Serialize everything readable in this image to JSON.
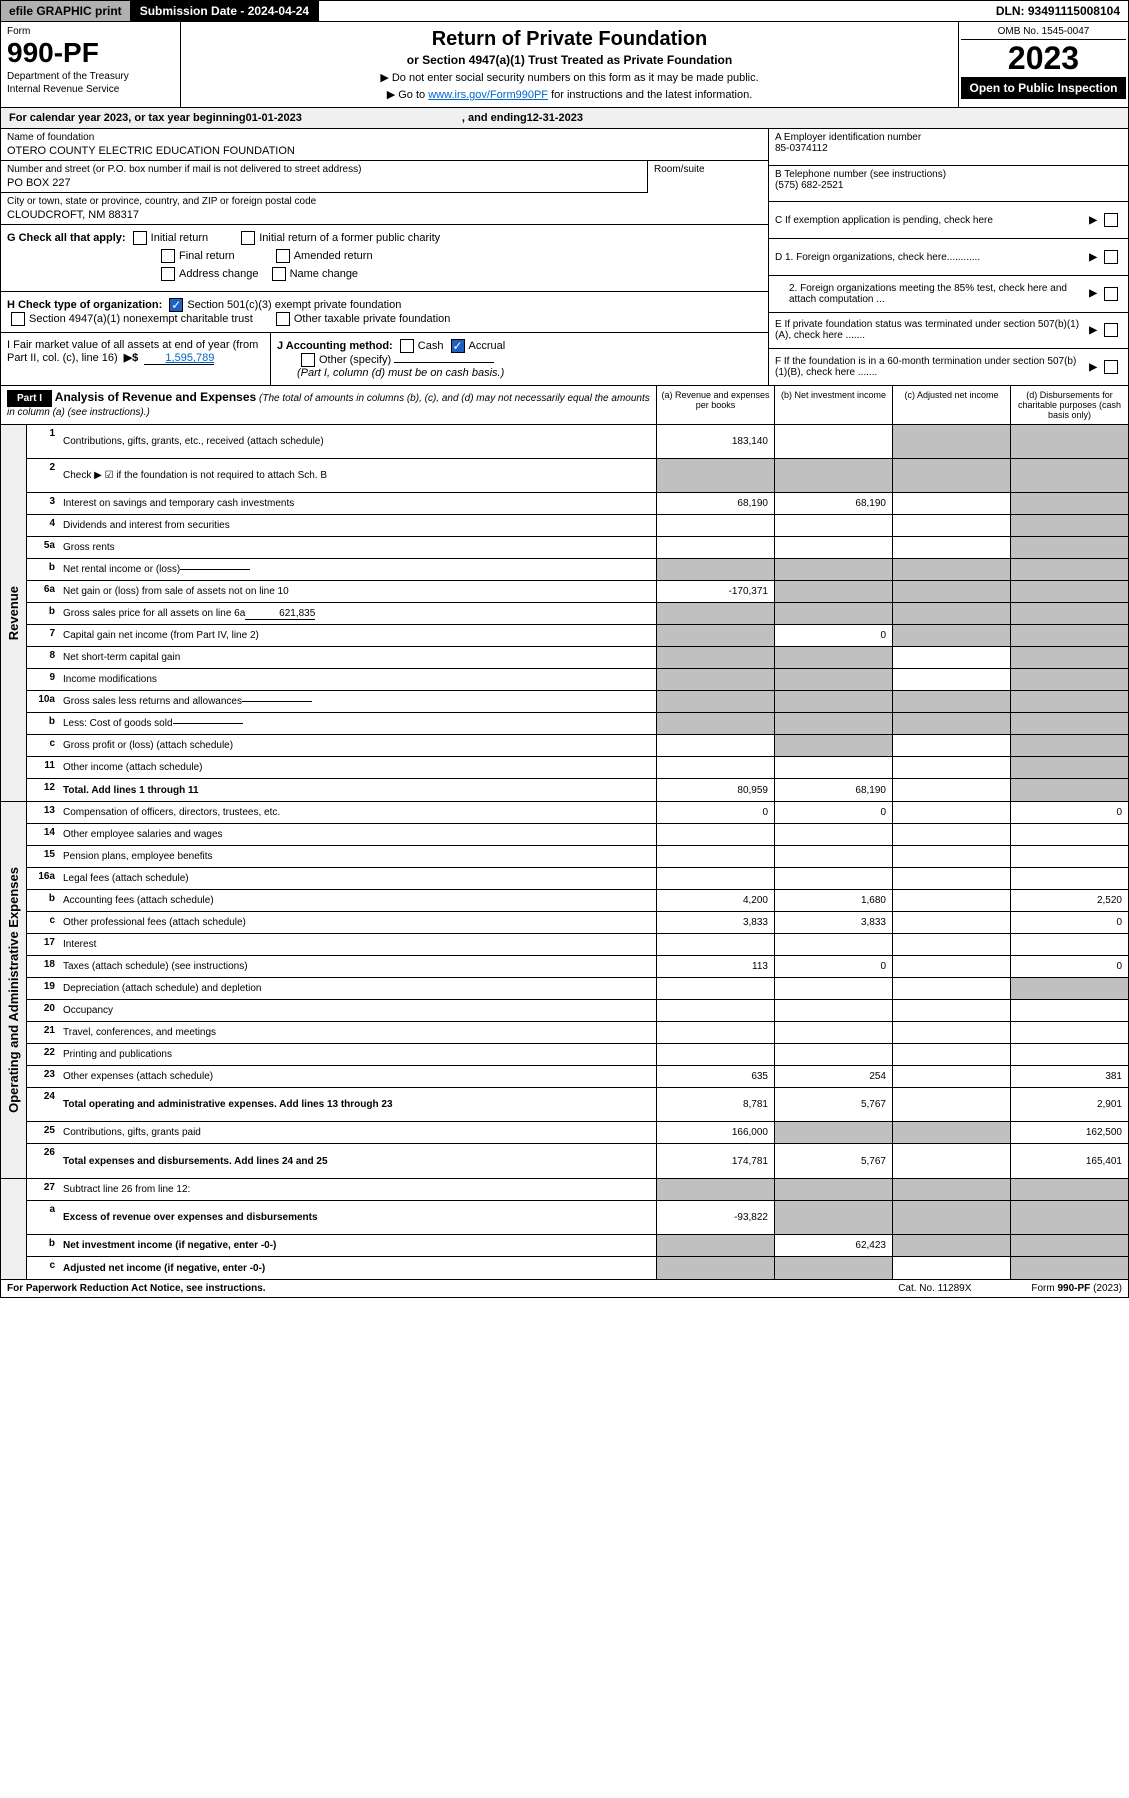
{
  "topbar": {
    "efile": "efile GRAPHIC print",
    "submission": "Submission Date - 2024-04-24",
    "dln": "DLN: 93491115008104"
  },
  "header": {
    "form_label": "Form",
    "form_number": "990-PF",
    "dept": "Department of the Treasury",
    "irs_line": "Internal Revenue Service",
    "title": "Return of Private Foundation",
    "subtitle": "or Section 4947(a)(1) Trust Treated as Private Foundation",
    "instr1": "▶ Do not enter social security numbers on this form as it may be made public.",
    "instr2_pre": "▶ Go to ",
    "instr2_link": "www.irs.gov/Form990PF",
    "instr2_post": " for instructions and the latest information.",
    "omb": "OMB No. 1545-0047",
    "year": "2023",
    "open": "Open to Public Inspection"
  },
  "calendar_line_pre": "For calendar year 2023, or tax year beginning ",
  "calendar_begin": "01-01-2023",
  "calendar_mid": " , and ending ",
  "calendar_end": "12-31-2023",
  "foundation": {
    "name_label": "Name of foundation",
    "name": "OTERO COUNTY ELECTRIC EDUCATION FOUNDATION",
    "address_label": "Number and street (or P.O. box number if mail is not delivered to street address)",
    "address": "PO BOX 227",
    "room_label": "Room/suite",
    "city_label": "City or town, state or province, country, and ZIP or foreign postal code",
    "city": "CLOUDCROFT, NM  88317"
  },
  "right_info": {
    "a_label": "A Employer identification number",
    "a_val": "85-0374112",
    "b_label": "B Telephone number (see instructions)",
    "b_val": "(575) 682-2521",
    "c_label": "C If exemption application is pending, check here",
    "d1_label": "D 1. Foreign organizations, check here............",
    "d2_label": "2. Foreign organizations meeting the 85% test, check here and attach computation ...",
    "e_label": "E  If private foundation status was terminated under section 507(b)(1)(A), check here .......",
    "f_label": "F  If the foundation is in a 60-month termination under section 507(b)(1)(B), check here .......",
    "arrow": "▶"
  },
  "g": {
    "label": "G Check all that apply:",
    "initial": "Initial return",
    "initial_former": "Initial return of a former public charity",
    "final": "Final return",
    "amended": "Amended return",
    "address": "Address change",
    "name": "Name change"
  },
  "h": {
    "label": "H Check type of organization:",
    "501c3": "Section 501(c)(3) exempt private foundation",
    "4947": "Section 4947(a)(1) nonexempt charitable trust",
    "other_tax": "Other taxable private foundation"
  },
  "i": {
    "label_pre": "I Fair market value of all assets at end of year (from Part II, col. (c), line 16) ",
    "arrow": "▶$",
    "value": "1,595,789"
  },
  "j": {
    "label": "J Accounting method:",
    "cash": "Cash",
    "accrual": "Accrual",
    "other": "Other (specify)",
    "note": "(Part I, column (d) must be on cash basis.)"
  },
  "part1": {
    "badge": "Part I",
    "title": "Analysis of Revenue and Expenses",
    "title_note": " (The total of amounts in columns (b), (c), and (d) may not necessarily equal the amounts in column (a) (see instructions).)",
    "col_a": "(a)  Revenue and expenses per books",
    "col_b": "(b)  Net investment income",
    "col_c": "(c)  Adjusted net income",
    "col_d": "(d)  Disbursements for charitable purposes (cash basis only)"
  },
  "side_labels": {
    "revenue": "Revenue",
    "expenses": "Operating and Administrative Expenses"
  },
  "lines": [
    {
      "n": "1",
      "desc": "Contributions, gifts, grants, etc., received (attach schedule)",
      "a": "183,140",
      "b": "",
      "c_shade": true,
      "d_shade": true,
      "multi": true
    },
    {
      "n": "2",
      "desc": "Check ▶ ☑ if the foundation is not required to attach Sch. B",
      "a": "",
      "b": "",
      "c_shade": true,
      "d_shade": true,
      "multi": true,
      "a_shade": true,
      "b_shade": true
    },
    {
      "n": "3",
      "desc": "Interest on savings and temporary cash investments",
      "a": "68,190",
      "b": "68,190",
      "c": "",
      "d_shade": true
    },
    {
      "n": "4",
      "desc": "Dividends and interest from securities",
      "a": "",
      "b": "",
      "c": "",
      "d_shade": true
    },
    {
      "n": "5a",
      "desc": "Gross rents",
      "a": "",
      "b": "",
      "c": "",
      "d_shade": true
    },
    {
      "n": "b",
      "desc": "Net rental income or (loss)",
      "a_shade": true,
      "b_shade": true,
      "c_shade": true,
      "d_shade": true,
      "inline_val": ""
    },
    {
      "n": "6a",
      "desc": "Net gain or (loss) from sale of assets not on line 10",
      "a": "-170,371",
      "b_shade": true,
      "c_shade": true,
      "d_shade": true
    },
    {
      "n": "b",
      "desc": "Gross sales price for all assets on line 6a",
      "inline_val": "621,835",
      "a_shade": true,
      "b_shade": true,
      "c_shade": true,
      "d_shade": true
    },
    {
      "n": "7",
      "desc": "Capital gain net income (from Part IV, line 2)",
      "a_shade": true,
      "b": "0",
      "c_shade": true,
      "d_shade": true
    },
    {
      "n": "8",
      "desc": "Net short-term capital gain",
      "a_shade": true,
      "b_shade": true,
      "c": "",
      "d_shade": true
    },
    {
      "n": "9",
      "desc": "Income modifications",
      "a_shade": true,
      "b_shade": true,
      "c": "",
      "d_shade": true
    },
    {
      "n": "10a",
      "desc": "Gross sales less returns and allowances",
      "inline_val": "",
      "a_shade": true,
      "b_shade": true,
      "c_shade": true,
      "d_shade": true
    },
    {
      "n": "b",
      "desc": "Less: Cost of goods sold",
      "inline_val": "",
      "a_shade": true,
      "b_shade": true,
      "c_shade": true,
      "d_shade": true
    },
    {
      "n": "c",
      "desc": "Gross profit or (loss) (attach schedule)",
      "a": "",
      "b_shade": true,
      "c": "",
      "d_shade": true
    },
    {
      "n": "11",
      "desc": "Other income (attach schedule)",
      "a": "",
      "b": "",
      "c": "",
      "d_shade": true
    },
    {
      "n": "12",
      "desc": "Total. Add lines 1 through 11",
      "bold": true,
      "a": "80,959",
      "b": "68,190",
      "c": "",
      "d_shade": true
    }
  ],
  "exp_lines": [
    {
      "n": "13",
      "desc": "Compensation of officers, directors, trustees, etc.",
      "a": "0",
      "b": "0",
      "c": "",
      "d": "0"
    },
    {
      "n": "14",
      "desc": "Other employee salaries and wages",
      "a": "",
      "b": "",
      "c": "",
      "d": ""
    },
    {
      "n": "15",
      "desc": "Pension plans, employee benefits",
      "a": "",
      "b": "",
      "c": "",
      "d": ""
    },
    {
      "n": "16a",
      "desc": "Legal fees (attach schedule)",
      "a": "",
      "b": "",
      "c": "",
      "d": ""
    },
    {
      "n": "b",
      "desc": "Accounting fees (attach schedule)",
      "a": "4,200",
      "b": "1,680",
      "c": "",
      "d": "2,520"
    },
    {
      "n": "c",
      "desc": "Other professional fees (attach schedule)",
      "a": "3,833",
      "b": "3,833",
      "c": "",
      "d": "0"
    },
    {
      "n": "17",
      "desc": "Interest",
      "a": "",
      "b": "",
      "c": "",
      "d": ""
    },
    {
      "n": "18",
      "desc": "Taxes (attach schedule) (see instructions)",
      "a": "113",
      "b": "0",
      "c": "",
      "d": "0"
    },
    {
      "n": "19",
      "desc": "Depreciation (attach schedule) and depletion",
      "a": "",
      "b": "",
      "c": "",
      "d_shade": true
    },
    {
      "n": "20",
      "desc": "Occupancy",
      "a": "",
      "b": "",
      "c": "",
      "d": ""
    },
    {
      "n": "21",
      "desc": "Travel, conferences, and meetings",
      "a": "",
      "b": "",
      "c": "",
      "d": ""
    },
    {
      "n": "22",
      "desc": "Printing and publications",
      "a": "",
      "b": "",
      "c": "",
      "d": ""
    },
    {
      "n": "23",
      "desc": "Other expenses (attach schedule)",
      "a": "635",
      "b": "254",
      "c": "",
      "d": "381"
    },
    {
      "n": "24",
      "desc": "Total operating and administrative expenses. Add lines 13 through 23",
      "bold": true,
      "a": "8,781",
      "b": "5,767",
      "c": "",
      "d": "2,901",
      "multi": true
    },
    {
      "n": "25",
      "desc": "Contributions, gifts, grants paid",
      "a": "166,000",
      "b_shade": true,
      "c_shade": true,
      "d": "162,500"
    },
    {
      "n": "26",
      "desc": "Total expenses and disbursements. Add lines 24 and 25",
      "bold": true,
      "a": "174,781",
      "b": "5,767",
      "c": "",
      "d": "165,401",
      "multi": true
    }
  ],
  "bottom_lines": [
    {
      "n": "27",
      "desc": "Subtract line 26 from line 12:",
      "a_shade": true,
      "b_shade": true,
      "c_shade": true,
      "d_shade": true
    },
    {
      "n": "a",
      "desc": "Excess of revenue over expenses and disbursements",
      "bold": true,
      "a": "-93,822",
      "b_shade": true,
      "c_shade": true,
      "d_shade": true,
      "multi": true
    },
    {
      "n": "b",
      "desc": "Net investment income (if negative, enter -0-)",
      "bold": true,
      "a_shade": true,
      "b": "62,423",
      "c_shade": true,
      "d_shade": true
    },
    {
      "n": "c",
      "desc": "Adjusted net income (if negative, enter -0-)",
      "bold": true,
      "a_shade": true,
      "b_shade": true,
      "c": "",
      "d_shade": true
    }
  ],
  "footer": {
    "left": "For Paperwork Reduction Act Notice, see instructions.",
    "cat": "Cat. No. 11289X",
    "form": "Form 990-PF (2023)"
  }
}
